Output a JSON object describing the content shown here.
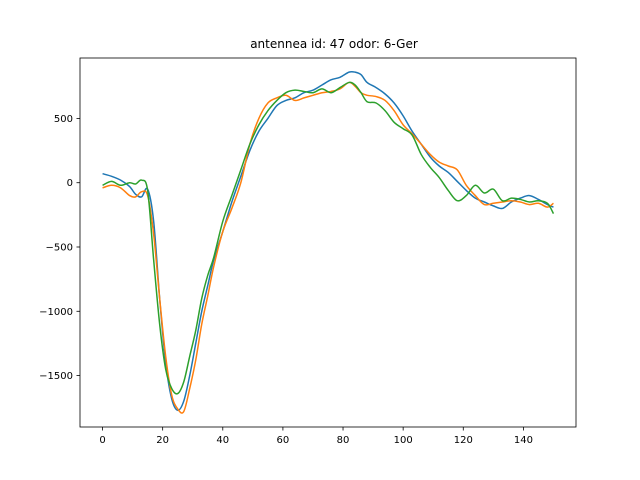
{
  "chart_data": {
    "type": "line",
    "title": "antennea id: 47    odor: 6-Ger",
    "xlabel": "",
    "ylabel": "",
    "xlim": [
      -7.5,
      157.5
    ],
    "ylim": [
      -1900,
      970
    ],
    "xticks": [
      0,
      20,
      40,
      60,
      80,
      100,
      120,
      140
    ],
    "yticks": [
      -1500,
      -1000,
      -500,
      0,
      500
    ],
    "ytick_labels": [
      "−1500",
      "−1000",
      "−500",
      "0",
      "500"
    ],
    "grid": false,
    "legend": "none",
    "series": [
      {
        "color": "#1f77b4",
        "x": [
          0,
          3,
          6,
          9,
          11,
          13,
          15,
          17,
          19,
          21,
          23,
          25,
          27,
          29,
          31,
          33,
          35,
          37,
          40,
          43,
          46,
          49,
          52,
          55,
          58,
          61,
          64,
          67,
          70,
          73,
          76,
          79,
          82,
          84,
          86,
          88,
          91,
          94,
          97,
          100,
          103,
          106,
          109,
          112,
          115,
          118,
          121,
          124,
          127,
          130,
          133,
          136,
          139,
          142,
          145,
          148,
          150
        ],
        "y": [
          70,
          50,
          20,
          -30,
          -90,
          -110,
          -50,
          -300,
          -900,
          -1400,
          -1680,
          -1770,
          -1700,
          -1500,
          -1250,
          -1000,
          -800,
          -600,
          -380,
          -150,
          50,
          250,
          400,
          500,
          600,
          640,
          660,
          700,
          720,
          760,
          800,
          820,
          860,
          860,
          840,
          780,
          740,
          690,
          620,
          520,
          400,
          300,
          200,
          130,
          80,
          10,
          -60,
          -120,
          -150,
          -180,
          -200,
          -150,
          -120,
          -100,
          -130,
          -170,
          -190
        ]
      },
      {
        "color": "#ff7f0e",
        "x": [
          0,
          3,
          6,
          9,
          11,
          13,
          15,
          17,
          19,
          21,
          23,
          25,
          27,
          29,
          31,
          33,
          35,
          37,
          40,
          43,
          46,
          49,
          52,
          55,
          58,
          61,
          64,
          67,
          70,
          73,
          76,
          79,
          82,
          84,
          86,
          88,
          91,
          94,
          97,
          100,
          103,
          106,
          109,
          112,
          115,
          118,
          121,
          124,
          127,
          130,
          133,
          136,
          139,
          142,
          145,
          148,
          150
        ],
        "y": [
          -40,
          -20,
          -40,
          -100,
          -110,
          -70,
          -100,
          -400,
          -900,
          -1350,
          -1650,
          -1760,
          -1780,
          -1600,
          -1380,
          -1100,
          -880,
          -650,
          -380,
          -200,
          0,
          300,
          500,
          620,
          660,
          680,
          640,
          660,
          680,
          700,
          710,
          730,
          780,
          750,
          700,
          680,
          670,
          640,
          560,
          450,
          380,
          300,
          220,
          160,
          130,
          100,
          -20,
          -100,
          -170,
          -160,
          -150,
          -140,
          -150,
          -170,
          -160,
          -190,
          -160
        ]
      },
      {
        "color": "#2ca02c",
        "x": [
          0,
          3,
          6,
          9,
          11,
          13,
          15,
          17,
          19,
          21,
          23,
          25,
          27,
          29,
          31,
          33,
          35,
          37,
          40,
          43,
          46,
          49,
          52,
          55,
          58,
          61,
          64,
          67,
          70,
          73,
          76,
          79,
          82,
          84,
          86,
          88,
          91,
          94,
          97,
          100,
          103,
          106,
          109,
          112,
          115,
          118,
          121,
          124,
          127,
          130,
          133,
          136,
          139,
          142,
          145,
          148,
          150
        ],
        "y": [
          -20,
          10,
          -20,
          0,
          -10,
          20,
          -60,
          -600,
          -1100,
          -1450,
          -1600,
          -1640,
          -1550,
          -1350,
          -1150,
          -900,
          -720,
          -580,
          -300,
          -100,
          100,
          300,
          450,
          560,
          640,
          700,
          720,
          710,
          700,
          730,
          700,
          740,
          780,
          760,
          700,
          630,
          620,
          560,
          470,
          420,
          370,
          220,
          120,
          40,
          -60,
          -140,
          -100,
          -20,
          -80,
          -50,
          -140,
          -120,
          -130,
          -150,
          -140,
          -160,
          -240
        ]
      }
    ]
  }
}
